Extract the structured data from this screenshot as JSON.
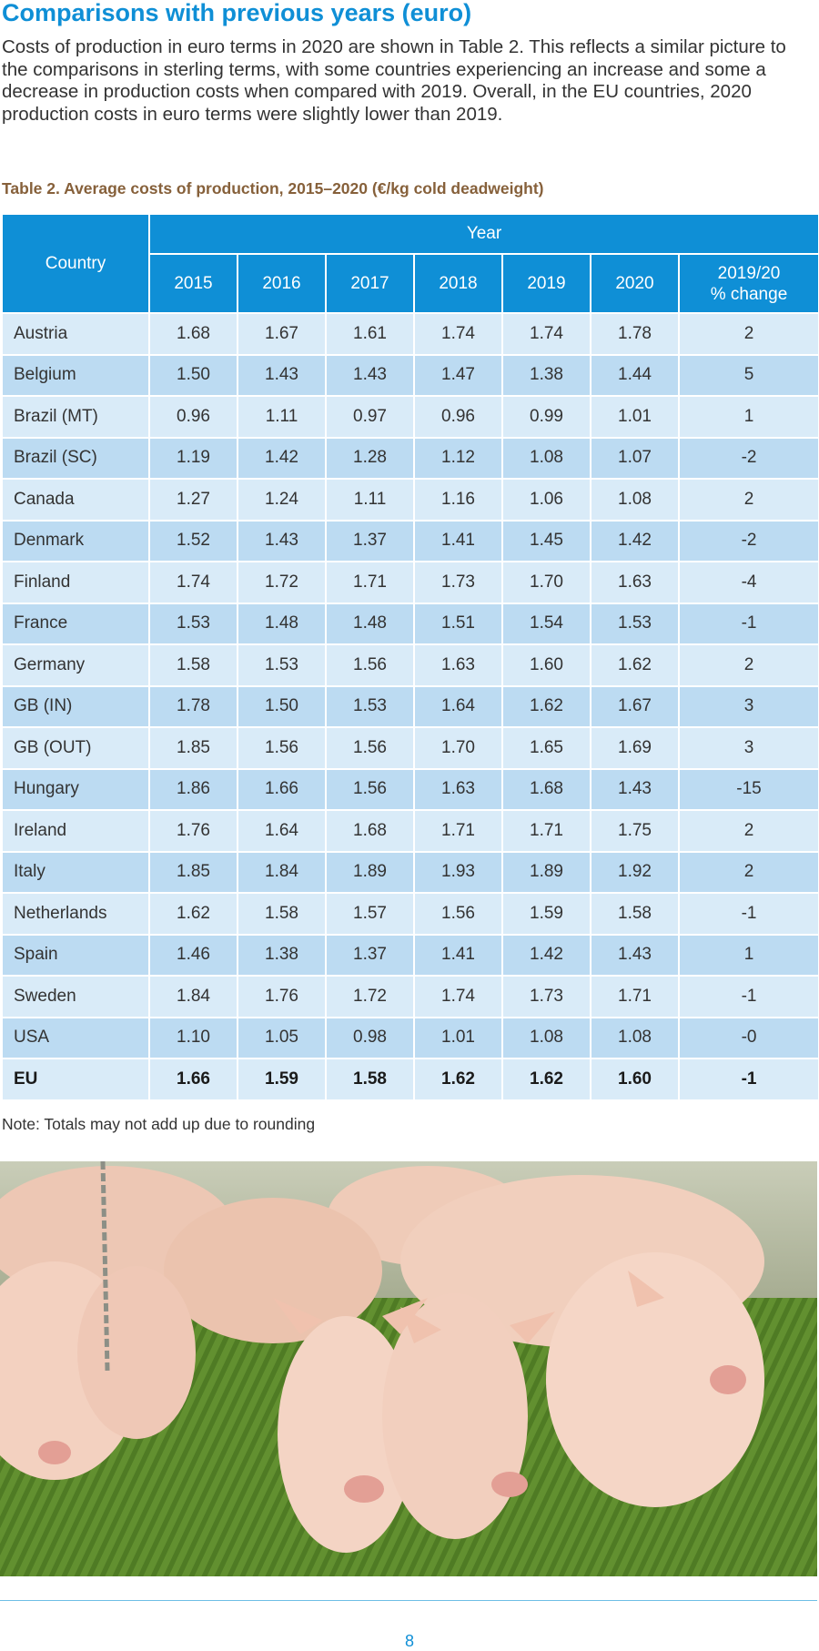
{
  "heading": "Comparisons with previous years (euro)",
  "intro": "Costs of production in euro terms in 2020 are shown in Table 2. This reflects a similar picture to the comparisons in sterling terms, with some countries experiencing an increase and some a decrease in production costs when compared with 2019. Overall, in the EU countries, 2020 production costs in euro terms were slightly lower than 2019.",
  "caption": "Table 2. Average costs of production, 2015–2020 (€/kg cold deadweight)",
  "table": {
    "country_header": "Country",
    "year_header": "Year",
    "year_columns": [
      "2015",
      "2016",
      "2017",
      "2018",
      "2019",
      "2020"
    ],
    "change_header_line1": "2019/20",
    "change_header_line2": "% change",
    "rows": [
      {
        "country": "Austria",
        "v2015": "1.68",
        "v2016": "1.67",
        "v2017": "1.61",
        "v2018": "1.74",
        "v2019": "1.74",
        "v2020": "1.78",
        "change": "2"
      },
      {
        "country": "Belgium",
        "v2015": "1.50",
        "v2016": "1.43",
        "v2017": "1.43",
        "v2018": "1.47",
        "v2019": "1.38",
        "v2020": "1.44",
        "change": "5"
      },
      {
        "country": "Brazil (MT)",
        "v2015": "0.96",
        "v2016": "1.11",
        "v2017": "0.97",
        "v2018": "0.96",
        "v2019": "0.99",
        "v2020": "1.01",
        "change": "1"
      },
      {
        "country": "Brazil (SC)",
        "v2015": "1.19",
        "v2016": "1.42",
        "v2017": "1.28",
        "v2018": "1.12",
        "v2019": "1.08",
        "v2020": "1.07",
        "change": "-2"
      },
      {
        "country": "Canada",
        "v2015": "1.27",
        "v2016": "1.24",
        "v2017": "1.11",
        "v2018": "1.16",
        "v2019": "1.06",
        "v2020": "1.08",
        "change": "2"
      },
      {
        "country": "Denmark",
        "v2015": "1.52",
        "v2016": "1.43",
        "v2017": "1.37",
        "v2018": "1.41",
        "v2019": "1.45",
        "v2020": "1.42",
        "change": "-2"
      },
      {
        "country": "Finland",
        "v2015": "1.74",
        "v2016": "1.72",
        "v2017": "1.71",
        "v2018": "1.73",
        "v2019": "1.70",
        "v2020": "1.63",
        "change": "-4"
      },
      {
        "country": "France",
        "v2015": "1.53",
        "v2016": "1.48",
        "v2017": "1.48",
        "v2018": "1.51",
        "v2019": "1.54",
        "v2020": "1.53",
        "change": "-1"
      },
      {
        "country": "Germany",
        "v2015": "1.58",
        "v2016": "1.53",
        "v2017": "1.56",
        "v2018": "1.63",
        "v2019": "1.60",
        "v2020": "1.62",
        "change": "2"
      },
      {
        "country": "GB (IN)",
        "v2015": "1.78",
        "v2016": "1.50",
        "v2017": "1.53",
        "v2018": "1.64",
        "v2019": "1.62",
        "v2020": "1.67",
        "change": "3"
      },
      {
        "country": "GB (OUT)",
        "v2015": "1.85",
        "v2016": "1.56",
        "v2017": "1.56",
        "v2018": "1.70",
        "v2019": "1.65",
        "v2020": "1.69",
        "change": "3"
      },
      {
        "country": "Hungary",
        "v2015": "1.86",
        "v2016": "1.66",
        "v2017": "1.56",
        "v2018": "1.63",
        "v2019": "1.68",
        "v2020": "1.43",
        "change": "-15"
      },
      {
        "country": "Ireland",
        "v2015": "1.76",
        "v2016": "1.64",
        "v2017": "1.68",
        "v2018": "1.71",
        "v2019": "1.71",
        "v2020": "1.75",
        "change": "2"
      },
      {
        "country": "Italy",
        "v2015": "1.85",
        "v2016": "1.84",
        "v2017": "1.89",
        "v2018": "1.93",
        "v2019": "1.89",
        "v2020": "1.92",
        "change": "2"
      },
      {
        "country": "Netherlands",
        "v2015": "1.62",
        "v2016": "1.58",
        "v2017": "1.57",
        "v2018": "1.56",
        "v2019": "1.59",
        "v2020": "1.58",
        "change": "-1"
      },
      {
        "country": "Spain",
        "v2015": "1.46",
        "v2016": "1.38",
        "v2017": "1.37",
        "v2018": "1.41",
        "v2019": "1.42",
        "v2020": "1.43",
        "change": "1"
      },
      {
        "country": "Sweden",
        "v2015": "1.84",
        "v2016": "1.76",
        "v2017": "1.72",
        "v2018": "1.74",
        "v2019": "1.73",
        "v2020": "1.71",
        "change": "-1"
      },
      {
        "country": "USA",
        "v2015": "1.10",
        "v2016": "1.05",
        "v2017": "0.98",
        "v2018": "1.01",
        "v2019": "1.08",
        "v2020": "1.08",
        "change": "-0"
      }
    ],
    "total_row": {
      "country": "EU",
      "v2015": "1.66",
      "v2016": "1.59",
      "v2017": "1.58",
      "v2018": "1.62",
      "v2019": "1.62",
      "v2020": "1.60",
      "change": "-1"
    }
  },
  "note": "Note: Totals may not add up due to rounding",
  "photo_icon": "pigs-photo",
  "page_number": "8",
  "colors": {
    "accent": "#0f8fd6",
    "caption": "#86603a",
    "row_light": "#d9ebf8",
    "row_dark": "#bcdbf2"
  }
}
